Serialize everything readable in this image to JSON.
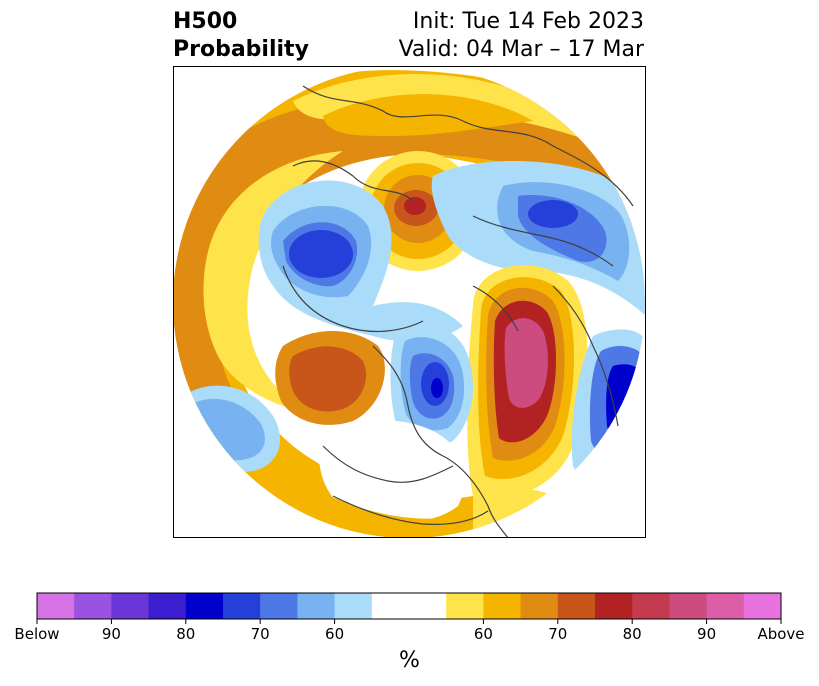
{
  "header": {
    "title_line1": "H500",
    "title_line2": "Probability",
    "init": "Init: Tue 14 Feb 2023",
    "valid": "Valid: 04 Mar – 17 Mar"
  },
  "colorbar": {
    "colors": [
      "#d672e6",
      "#9a52e0",
      "#6a36d8",
      "#3a1ed0",
      "#0000cc",
      "#2440d8",
      "#4e78e6",
      "#78b2f0",
      "#aadcfa",
      "#ffffff",
      "#ffffff",
      "#ffe34a",
      "#f4b400",
      "#e08c12",
      "#c8561a",
      "#b22222",
      "#c43a4e",
      "#cc4c80",
      "#dc5ea8",
      "#e872e0"
    ],
    "tick_labels": [
      "Below",
      "90",
      "80",
      "70",
      "60",
      "60",
      "70",
      "80",
      "90",
      "Above"
    ],
    "unit_label": "%"
  },
  "map": {
    "palette": {
      "above_60": "#ffe34a",
      "above_65": "#f4b400",
      "above_70": "#e08c12",
      "above_75": "#c8561a",
      "above_80": "#b22222",
      "above_85": "#c43a4e",
      "above_90": "#cc4c80",
      "below_60": "#aadcfa",
      "below_65": "#78b2f0",
      "below_70": "#4e78e6",
      "below_75": "#2440d8",
      "below_80": "#0000cc",
      "coast": "#404040"
    }
  }
}
